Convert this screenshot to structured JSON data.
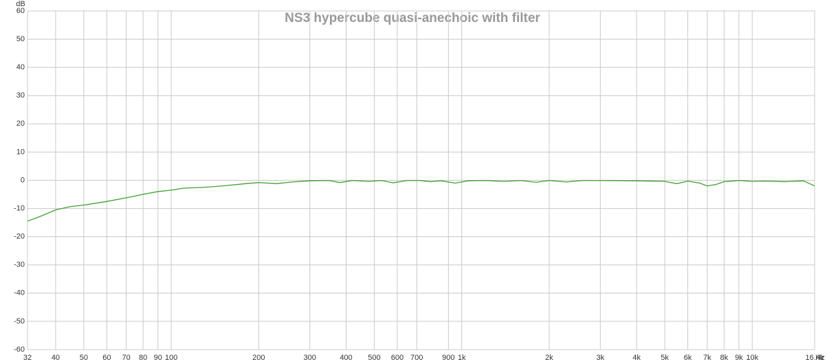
{
  "chart_data": {
    "type": "line",
    "title": "NS3 hypercube quasi-anechoic with filter",
    "y_label": "dB",
    "x_label": "Hz",
    "log_x": true,
    "grid": true,
    "xlim": [
      32,
      16400
    ],
    "ylim": [
      -60,
      60
    ],
    "xticks": [
      32,
      40,
      50,
      60,
      70,
      80,
      90,
      100,
      200,
      300,
      400,
      500,
      600,
      700,
      900,
      {
        "value": 1000,
        "label": "1k"
      },
      {
        "value": 2000,
        "label": "2k"
      },
      {
        "value": 3000,
        "label": "3k"
      },
      {
        "value": 4000,
        "label": "4k"
      },
      {
        "value": 5000,
        "label": "5k"
      },
      {
        "value": 6000,
        "label": "6k"
      },
      {
        "value": 7000,
        "label": "7k"
      },
      {
        "value": 8000,
        "label": "8k"
      },
      {
        "value": 9000,
        "label": "9k"
      },
      {
        "value": 10000,
        "label": "10k"
      },
      {
        "value": 16400,
        "label": "16.4k"
      }
    ],
    "yticks": [
      -60,
      -50,
      -40,
      -30,
      -20,
      -10,
      0,
      10,
      20,
      30,
      40,
      50,
      60
    ],
    "x": [
      32,
      36,
      40,
      45,
      50,
      60,
      70,
      80,
      90,
      100,
      110,
      130,
      150,
      180,
      200,
      230,
      260,
      300,
      350,
      380,
      420,
      480,
      530,
      580,
      650,
      720,
      780,
      850,
      950,
      1050,
      1200,
      1400,
      1600,
      1800,
      2000,
      2300,
      2600,
      3000,
      4000,
      5000,
      5500,
      6000,
      6600,
      7000,
      7500,
      8000,
      9000,
      10000,
      11000,
      13000,
      15000,
      16400
    ],
    "series": [
      {
        "color": "#3f9f2f",
        "values": [
          -14.5,
          -12.5,
          -10.5,
          -9.3,
          -8.8,
          -7.5,
          -6.2,
          -5,
          -4,
          -3.5,
          -2.8,
          -2.5,
          -2,
          -1.2,
          -0.8,
          -1.2,
          -0.6,
          -0.2,
          -0.1,
          -0.8,
          -0.1,
          -0.4,
          -0.1,
          -0.9,
          -0.1,
          -0.1,
          -0.5,
          -0.2,
          -1,
          -0.2,
          -0.1,
          -0.4,
          -0.1,
          -0.7,
          -0.1,
          -0.6,
          -0.1,
          -0.1,
          -0.2,
          -0.4,
          -1.2,
          -0.3,
          -1,
          -2,
          -1.5,
          -0.5,
          -0.1,
          -0.4,
          -0.3,
          -0.5,
          -0.2,
          -2
        ]
      }
    ]
  }
}
